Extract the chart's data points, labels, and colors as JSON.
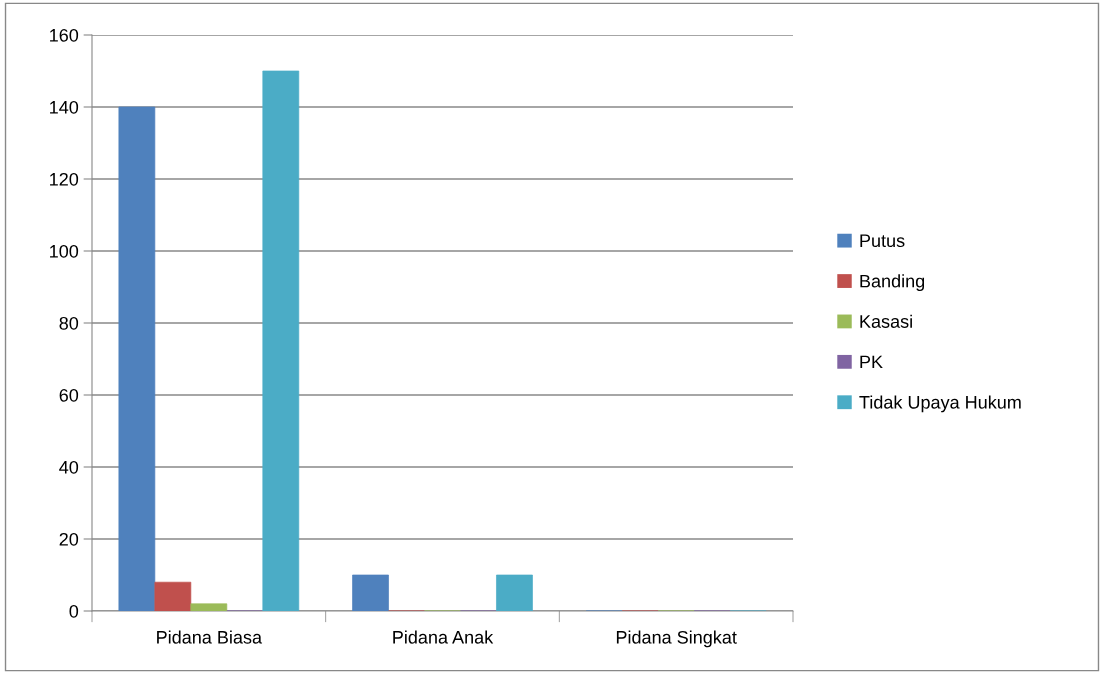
{
  "chart_data": {
    "type": "bar",
    "categories": [
      "Pidana Biasa",
      "Pidana Anak",
      "Pidana Singkat"
    ],
    "series": [
      {
        "name": "Putus",
        "color": "#4f81bd",
        "values": [
          140,
          10,
          0
        ]
      },
      {
        "name": "Banding",
        "color": "#c0504d",
        "values": [
          8,
          0,
          0
        ]
      },
      {
        "name": "Kasasi",
        "color": "#9bbb59",
        "values": [
          2,
          0,
          0
        ]
      },
      {
        "name": "PK",
        "color": "#8064a2",
        "values": [
          0,
          0,
          0
        ]
      },
      {
        "name": "Tidak Upaya Hukum",
        "color": "#4bacc6",
        "values": [
          150,
          10,
          0
        ]
      }
    ],
    "ylim": [
      0,
      160
    ],
    "yticks": [
      0,
      20,
      40,
      60,
      80,
      100,
      120,
      140,
      160
    ],
    "grid": "y",
    "legend": "right"
  }
}
